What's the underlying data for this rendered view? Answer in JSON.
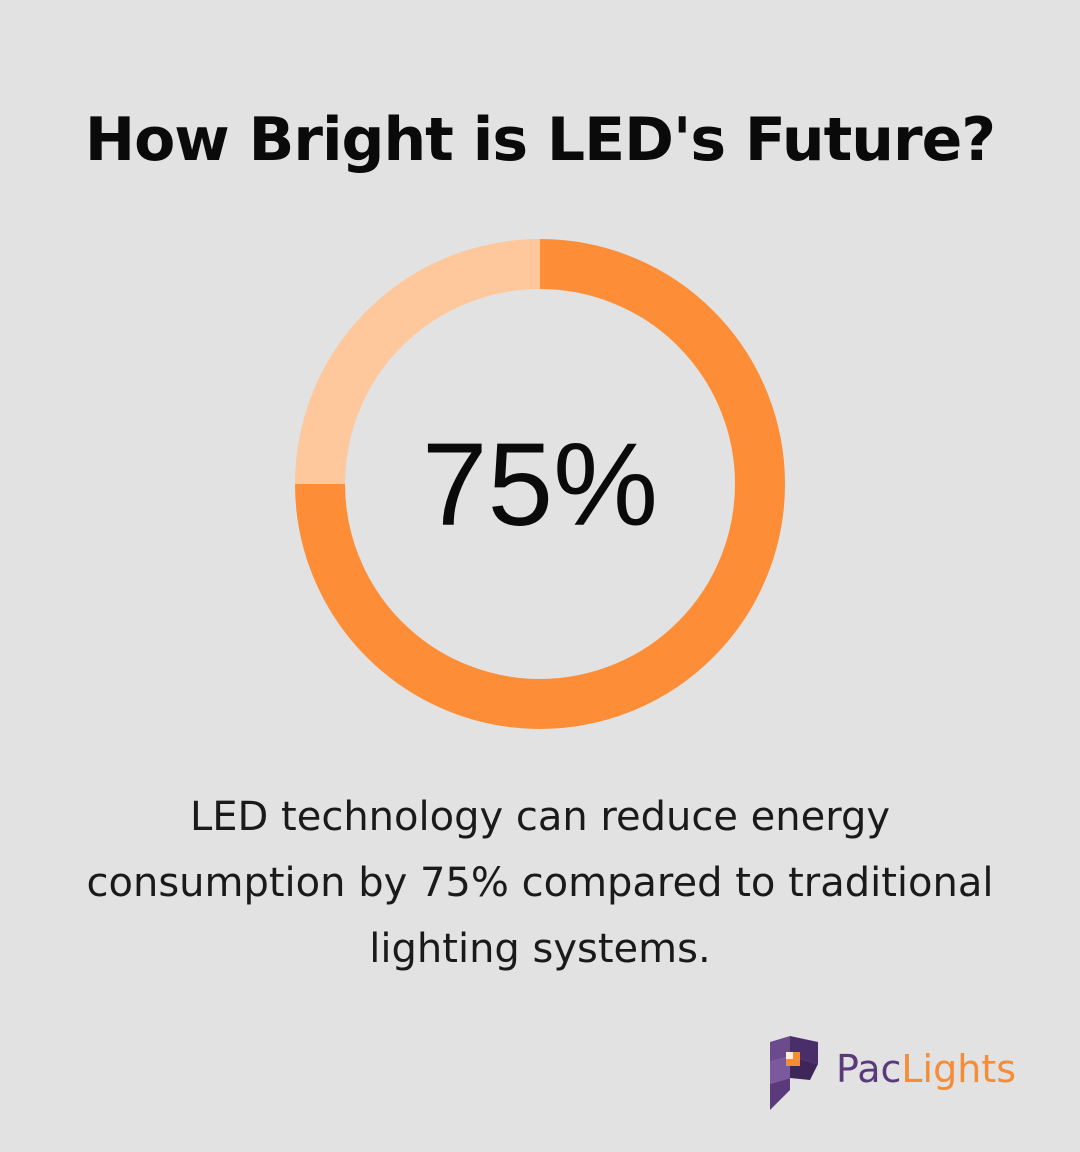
{
  "chart_data": {
    "type": "pie",
    "title": "How Bright is LED's Future?",
    "center_label": "75%",
    "slices": [
      {
        "value": 75,
        "color": "#fd8d36"
      },
      {
        "value": 25,
        "color": "#fec89c"
      }
    ]
  },
  "caption": {
    "lines": [
      "LED technology can reduce energy",
      "consumption by 75% compared to traditional",
      "lighting systems."
    ]
  },
  "brand": {
    "name_part_a": "Pac",
    "name_part_b": "Lights",
    "icon": "paclights-logo-icon",
    "colors": {
      "primary": "#5a3a7a",
      "accent": "#f58c37"
    }
  }
}
